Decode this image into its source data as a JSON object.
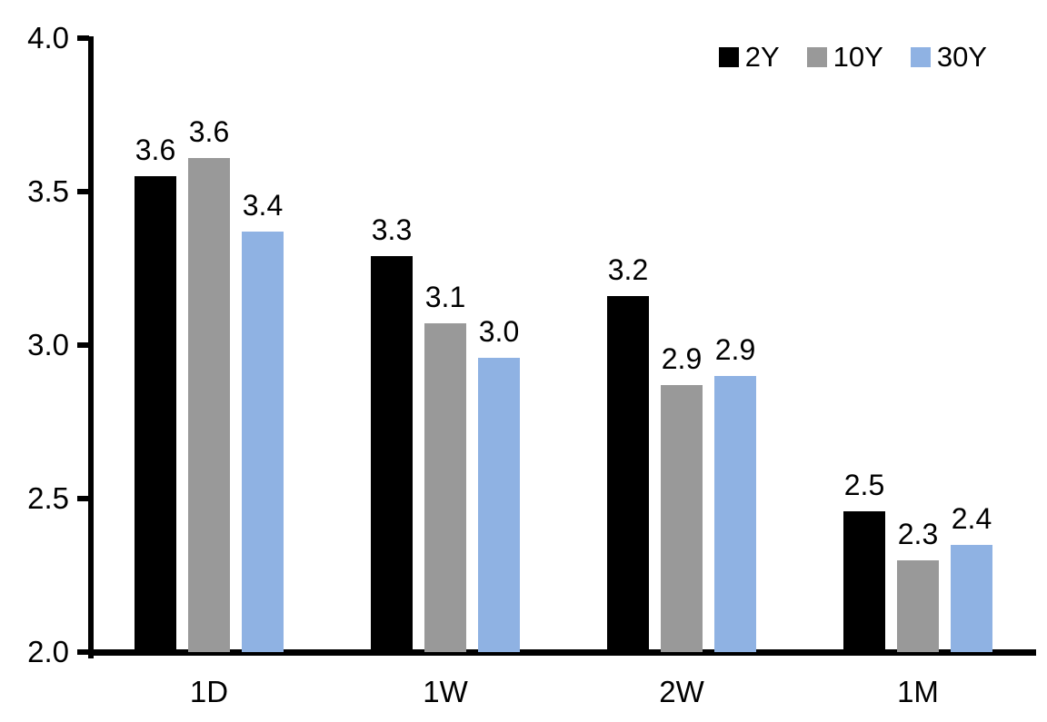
{
  "chart_data": {
    "type": "bar",
    "title": "",
    "categories": [
      "1D",
      "1W",
      "2W",
      "1M"
    ],
    "series": [
      {
        "name": "2Y",
        "color": "#000000",
        "values": [
          3.55,
          3.29,
          3.16,
          2.46
        ],
        "labels": [
          "3.6",
          "3.3",
          "3.2",
          "2.5"
        ]
      },
      {
        "name": "10Y",
        "color": "#999999",
        "values": [
          3.61,
          3.07,
          2.87,
          2.3
        ],
        "labels": [
          "3.6",
          "3.1",
          "2.9",
          "2.3"
        ]
      },
      {
        "name": "30Y",
        "color": "#8FB2E3",
        "values": [
          3.37,
          2.96,
          2.9,
          2.35
        ],
        "labels": [
          "3.4",
          "3.0",
          "2.9",
          "2.4"
        ]
      }
    ],
    "ylim": [
      2.0,
      4.0
    ],
    "yticks": [
      2.0,
      2.5,
      3.0,
      3.5,
      4.0
    ],
    "ytick_labels": [
      "2.0",
      "2.5",
      "3.0",
      "3.5",
      "4.0"
    ],
    "xlabel": "",
    "ylabel": "",
    "grid": false,
    "data_labels": true,
    "legend_position": "top-right",
    "colors": {
      "axis": "#000000",
      "text": "#000000",
      "background": "#FFFFFF"
    }
  }
}
